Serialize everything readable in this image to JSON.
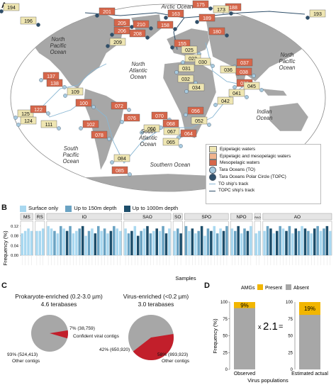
{
  "panels": {
    "a": "A",
    "b": "B",
    "c": "C",
    "d": "D"
  },
  "map": {
    "oceans": [
      {
        "key": "arctic",
        "text": "Arctic Ocean"
      },
      {
        "key": "npac_l",
        "text": "North\nPacific\nOcean"
      },
      {
        "key": "natl",
        "text": "North\nAtlantic\nOcean"
      },
      {
        "key": "npac_r",
        "text": "North\nPacific\nOcean"
      },
      {
        "key": "indian",
        "text": "Indian\nOcean"
      },
      {
        "key": "satl",
        "text": "South\nAtlantic\nOcean"
      },
      {
        "key": "spac",
        "text": "South\nPacific\nOcean"
      },
      {
        "key": "south",
        "text": "Southern Ocean"
      }
    ],
    "stations": [
      {
        "id": "194",
        "cat": "epi"
      },
      {
        "id": "196",
        "cat": "epi"
      },
      {
        "id": "201",
        "cat": "meso"
      },
      {
        "id": "205",
        "cat": "meso"
      },
      {
        "id": "206",
        "cat": "meso"
      },
      {
        "id": "208",
        "cat": "meso"
      },
      {
        "id": "209",
        "cat": "epi"
      },
      {
        "id": "210",
        "cat": "meso"
      },
      {
        "id": "163",
        "cat": "meso"
      },
      {
        "id": "158",
        "cat": "meso"
      },
      {
        "id": "155",
        "cat": "meso"
      },
      {
        "id": "175",
        "cat": "meso"
      },
      {
        "id": "188",
        "cat": "meso"
      },
      {
        "id": "173",
        "cat": "epi"
      },
      {
        "id": "189",
        "cat": "meso"
      },
      {
        "id": "180",
        "cat": "meso"
      },
      {
        "id": "193",
        "cat": "epi"
      },
      {
        "id": "025",
        "cat": "epi"
      },
      {
        "id": "023",
        "cat": "epi"
      },
      {
        "id": "030",
        "cat": "epi"
      },
      {
        "id": "031",
        "cat": "epi"
      },
      {
        "id": "032",
        "cat": "epi"
      },
      {
        "id": "034",
        "cat": "epi"
      },
      {
        "id": "036",
        "cat": "epi"
      },
      {
        "id": "037",
        "cat": "meso"
      },
      {
        "id": "038",
        "cat": "meso"
      },
      {
        "id": "039",
        "cat": "meso"
      },
      {
        "id": "041",
        "cat": "epi"
      },
      {
        "id": "042",
        "cat": "epi"
      },
      {
        "id": "045",
        "cat": "epi"
      },
      {
        "id": "137",
        "cat": "meso"
      },
      {
        "id": "138",
        "cat": "meso"
      },
      {
        "id": "109",
        "cat": "epi"
      },
      {
        "id": "100",
        "cat": "meso"
      },
      {
        "id": "125",
        "cat": "epi"
      },
      {
        "id": "122",
        "cat": "meso"
      },
      {
        "id": "124",
        "cat": "epi"
      },
      {
        "id": "111",
        "cat": "epi"
      },
      {
        "id": "102",
        "cat": "meso"
      },
      {
        "id": "072",
        "cat": "meso"
      },
      {
        "id": "076",
        "cat": "meso"
      },
      {
        "id": "070",
        "cat": "meso"
      },
      {
        "id": "056",
        "cat": "meso"
      },
      {
        "id": "052",
        "cat": "epi"
      },
      {
        "id": "068",
        "cat": "meso"
      },
      {
        "id": "078",
        "cat": "meso"
      },
      {
        "id": "066",
        "cat": "epi"
      },
      {
        "id": "067",
        "cat": "epi"
      },
      {
        "id": "064",
        "cat": "meso"
      },
      {
        "id": "065",
        "cat": "epi"
      },
      {
        "id": "084",
        "cat": "epi"
      },
      {
        "id": "085",
        "cat": "meso"
      }
    ],
    "legend": {
      "epi": "Epipelagic waters",
      "episome": "Epipelagic and mesopelagic waters",
      "meso": "Mesopelagic waters",
      "to": "Tara Oceans (TO)",
      "topc": "Tara Oceans Polar Circle (TOPC)",
      "to_track": "TO ship's track",
      "topc_track": "TOPC ship's track"
    },
    "colors": {
      "epi": "#efe6b2",
      "episome": "#f1b48e",
      "meso": "#d6664a",
      "land": "#a7a7a7",
      "ocean": "#ffffff",
      "to": "#a8cbe0",
      "topc": "#2f4f6a"
    }
  },
  "barchart": {
    "legend": [
      "Surface only",
      "Up to 150m depth",
      "Up to 1000m depth"
    ],
    "colors": [
      "#a9d8f0",
      "#6aa3c3",
      "#1d4e6b"
    ],
    "ylabel": "Frequency (%)",
    "xlabel": "Samples",
    "yticks": [
      "0.00",
      "0.04",
      "0.08",
      "0.12"
    ],
    "regions": [
      "MS",
      "RS",
      "IO",
      "SAO",
      "SO",
      "SPO",
      "NPO",
      "RAO",
      "AO"
    ]
  },
  "chart_data": {
    "type": "bar",
    "ylabel": "Frequency (%)",
    "xlabel": "Samples",
    "ylim": [
      0,
      0.14
    ],
    "regions": [
      {
        "name": "MS",
        "values": [
          0.09,
          0.1,
          0.11,
          0.1
        ],
        "depth": [
          0,
          0,
          0,
          0
        ]
      },
      {
        "name": "RS",
        "values": [
          0.1,
          0.1,
          0.11
        ],
        "depth": [
          0,
          0,
          0
        ]
      },
      {
        "name": "IO",
        "values": [
          0.12,
          0.11,
          0.1,
          0.09,
          0.12,
          0.11,
          0.1,
          0.12,
          0.09,
          0.1,
          0.11,
          0.12,
          0.08,
          0.1,
          0.11,
          0.09,
          0.12,
          0.1,
          0.11,
          0.09,
          0.1,
          0.12,
          0.11,
          0.1
        ],
        "depth": [
          0,
          0,
          1,
          0,
          1,
          0,
          2,
          1,
          0,
          0,
          1,
          2,
          0,
          1,
          0,
          2,
          1,
          0,
          1,
          0,
          2,
          1,
          0,
          0
        ]
      },
      {
        "name": "SAO",
        "values": [
          0.11,
          0.09,
          0.1,
          0.12,
          0.08,
          0.1,
          0.11,
          0.12,
          0.09,
          0.1,
          0.11,
          0.1,
          0.12,
          0.09,
          0.11
        ],
        "depth": [
          0,
          1,
          2,
          0,
          2,
          1,
          0,
          2,
          1,
          0,
          2,
          0,
          1,
          2,
          0
        ]
      },
      {
        "name": "SO",
        "values": [
          0.1,
          0.11,
          0.09
        ],
        "depth": [
          0,
          1,
          2
        ]
      },
      {
        "name": "SPO",
        "values": [
          0.12,
          0.1,
          0.11,
          0.09,
          0.1,
          0.12,
          0.08,
          0.11,
          0.1,
          0.12,
          0.09,
          0.11,
          0.1,
          0.12
        ],
        "depth": [
          1,
          0,
          2,
          0,
          1,
          2,
          0,
          1,
          2,
          0,
          1,
          0,
          2,
          1
        ]
      },
      {
        "name": "NPO",
        "values": [
          0.11,
          0.1,
          0.12,
          0.09,
          0.11,
          0.1,
          0.12
        ],
        "depth": [
          0,
          1,
          2,
          0,
          1,
          2,
          0
        ]
      },
      {
        "name": "RAO",
        "values": [
          0.09,
          0.1
        ],
        "depth": [
          0,
          0
        ]
      },
      {
        "name": "AO",
        "values": [
          0.1,
          0.12,
          0.11,
          0.09,
          0.1,
          0.12,
          0.11,
          0.1,
          0.12,
          0.09,
          0.11,
          0.1,
          0.12,
          0.11,
          0.1,
          0.09,
          0.11,
          0.12,
          0.1,
          0.11,
          0.12,
          0.1
        ],
        "depth": [
          0,
          1,
          2,
          0,
          2,
          1,
          0,
          2,
          1,
          0,
          2,
          1,
          0,
          2,
          1,
          0,
          2,
          1,
          0,
          1,
          2,
          0
        ]
      }
    ]
  },
  "panelC": {
    "left": {
      "title": "Prokaryote-enriched (0.2-3.0 µm)",
      "size": "4.6 terabases",
      "viral_pct": "7% (38,759)",
      "other_pct": "93% (524,413)",
      "other_label": "Other contigs"
    },
    "right": {
      "title": "Virus-enriched (<0.2 µm)",
      "size": "3.0 terabases",
      "viral_pct": "42% (650,920)",
      "other_pct": "58% (893,923)",
      "other_label": "Other contigs"
    },
    "viral_label": "Confident viral contigs",
    "colors": {
      "viral": "#c21f2b",
      "other": "#a7a7a7"
    },
    "pie_values": {
      "left": [
        7,
        93
      ],
      "right": [
        42,
        58
      ]
    }
  },
  "panelD": {
    "legend_title": "AMGs",
    "present": "Present",
    "absent": "Absent",
    "colors": {
      "present": "#f2b600",
      "absent": "#a7a7a7"
    },
    "ylabel": "Frequency (%)",
    "yticks": [
      "0",
      "25",
      "50",
      "75",
      "100"
    ],
    "bars": [
      {
        "label": "Observed",
        "present_pct": 9,
        "text": "9%"
      },
      {
        "label": "Estimated actual",
        "present_pct": 19,
        "text": "19%"
      }
    ],
    "multiplier_x": "x",
    "multiplier": "2.1",
    "equals": "=",
    "xlabel": "Virus populations"
  }
}
